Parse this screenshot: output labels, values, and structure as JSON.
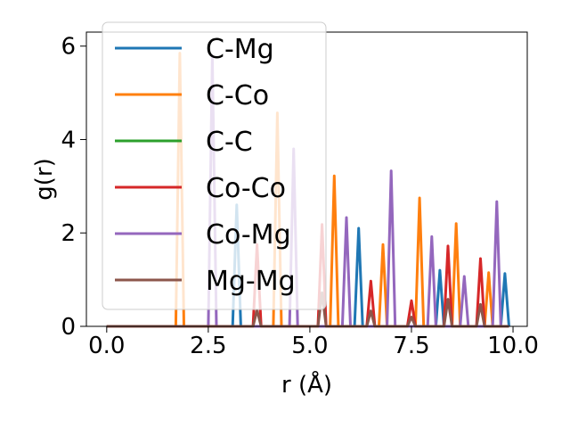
{
  "chart_data": {
    "type": "line",
    "xlabel": "r (Å)",
    "ylabel": "g(r)",
    "xlim": [
      -0.5,
      10.35
    ],
    "ylim": [
      0,
      6.3
    ],
    "xticks": [
      0.0,
      2.5,
      5.0,
      7.5,
      10.0
    ],
    "xtick_labels": [
      "0.0",
      "2.5",
      "5.0",
      "7.5",
      "10.0"
    ],
    "yticks": [
      0,
      2,
      4,
      6
    ],
    "ytick_labels": [
      "0",
      "2",
      "4",
      "6"
    ],
    "grid": false,
    "legend_position": "upper-left",
    "peak_halfwidth": 0.1,
    "x_range": [
      0.0,
      9.9
    ],
    "series": [
      {
        "name": "C-Mg",
        "color": "#1f77b4",
        "peaks": [
          [
            3.2,
            2.6
          ],
          [
            6.2,
            2.1
          ],
          [
            8.2,
            1.2
          ],
          [
            9.8,
            1.13
          ]
        ]
      },
      {
        "name": "C-Co",
        "color": "#ff7f0e",
        "peaks": [
          [
            1.8,
            5.85
          ],
          [
            4.2,
            4.57
          ],
          [
            5.6,
            3.22
          ],
          [
            6.8,
            1.75
          ],
          [
            7.7,
            2.75
          ],
          [
            8.6,
            2.2
          ],
          [
            9.4,
            1.15
          ]
        ]
      },
      {
        "name": "C-C",
        "color": "#2ca02c",
        "peaks": []
      },
      {
        "name": "Co-Co",
        "color": "#d62728",
        "peaks": [
          [
            3.7,
            1.75
          ],
          [
            5.3,
            2.18
          ],
          [
            6.5,
            0.97
          ],
          [
            7.5,
            0.55
          ],
          [
            8.4,
            1.72
          ],
          [
            9.2,
            1.45
          ]
        ]
      },
      {
        "name": "Co-Mg",
        "color": "#9467bd",
        "peaks": [
          [
            2.6,
            5.8
          ],
          [
            4.6,
            3.8
          ],
          [
            5.9,
            2.33
          ],
          [
            7.0,
            3.33
          ],
          [
            8.0,
            1.92
          ],
          [
            8.8,
            1.07
          ],
          [
            9.6,
            2.67
          ]
        ]
      },
      {
        "name": "Mg-Mg",
        "color": "#8c564b",
        "peaks": [
          [
            3.7,
            0.35
          ],
          [
            5.3,
            0.72
          ],
          [
            6.5,
            0.33
          ],
          [
            7.5,
            0.2
          ],
          [
            8.4,
            0.58
          ],
          [
            9.2,
            0.47
          ]
        ]
      }
    ]
  }
}
